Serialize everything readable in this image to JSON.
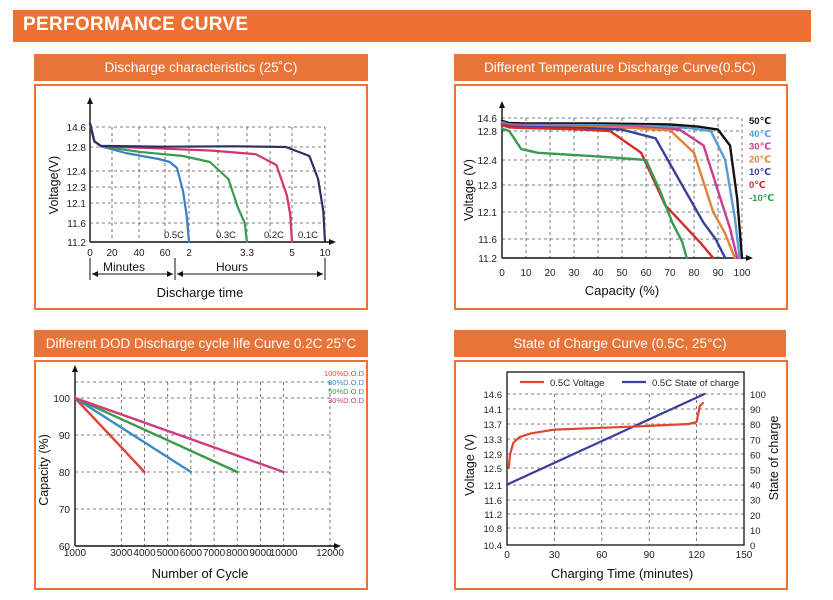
{
  "header": {
    "title": "PERFORMANCE CURVE"
  },
  "chart_data": [
    {
      "type": "line",
      "title": "Discharge characteristics (25˚C)",
      "ylabel": "Voltage(V)",
      "xlabel": "Discharge time",
      "x_section_labels": [
        "Minutes",
        "Hours"
      ],
      "x_tick_labels": [
        "0",
        "20",
        "40",
        "60",
        "2",
        "3.3",
        "5",
        "10"
      ],
      "y_ticks": [
        11.2,
        11.6,
        12.1,
        12.3,
        12.4,
        12.8,
        14.6
      ],
      "y_tick_labels": [
        "11.2",
        "11.6",
        "12.1",
        "12.3",
        "12.4",
        "12.8",
        "14.6"
      ],
      "series": [
        {
          "name": "0.5C",
          "color": "#3b7fc4",
          "points": [
            [
              0,
              14.5
            ],
            [
              4,
              13.2
            ],
            [
              10,
              12.85
            ],
            [
              30,
              12.7
            ],
            [
              55,
              12.6
            ],
            [
              68,
              12.55
            ],
            [
              80,
              12.45
            ],
            [
              90,
              12.25
            ],
            [
              96,
              11.8
            ],
            [
              100,
              11.2
            ]
          ]
        },
        {
          "name": "0.3C",
          "color": "#3a9a4d",
          "points": [
            [
              0,
              14.5
            ],
            [
              4,
              13.2
            ],
            [
              10,
              12.85
            ],
            [
              40,
              12.72
            ],
            [
              90,
              12.65
            ],
            [
              118,
              12.55
            ],
            [
              134,
              12.35
            ],
            [
              142,
              12.0
            ],
            [
              148,
              11.6
            ],
            [
              150,
              11.2
            ]
          ]
        },
        {
          "name": "0.2C",
          "color": "#d4336b",
          "points": [
            [
              0,
              14.5
            ],
            [
              4,
              13.2
            ],
            [
              10,
              12.85
            ],
            [
              50,
              12.78
            ],
            [
              120,
              12.74
            ],
            [
              160,
              12.68
            ],
            [
              184,
              12.5
            ],
            [
              196,
              12.2
            ],
            [
              200,
              11.8
            ],
            [
              202,
              11.2
            ]
          ]
        },
        {
          "name": "0.1C",
          "color": "#2d2f66",
          "points": [
            [
              0,
              14.5
            ],
            [
              4,
              13.2
            ],
            [
              10,
              12.88
            ],
            [
              60,
              12.82
            ],
            [
              140,
              12.85
            ],
            [
              195,
              12.8
            ],
            [
              222,
              12.65
            ],
            [
              232,
              12.35
            ],
            [
              238,
              11.9
            ],
            [
              240,
              11.2
            ]
          ]
        }
      ]
    },
    {
      "type": "line",
      "title": "Different Temperature Discharge Curve(0.5C)",
      "ylabel": "Voltage (V)",
      "xlabel": "Capacity (%)",
      "xlim": [
        0,
        100
      ],
      "x_ticks": [
        0,
        10,
        20,
        30,
        40,
        50,
        60,
        70,
        80,
        90,
        100
      ],
      "y_ticks": [
        11.2,
        11.6,
        12.1,
        12.3,
        12.4,
        12.8,
        14.6
      ],
      "y_tick_labels": [
        "11.2",
        "11.6",
        "12.1",
        "12.3",
        "12.4",
        "12.8",
        "14.6"
      ],
      "series": [
        {
          "name": "50℃",
          "color": "#111111",
          "points": [
            [
              0,
              14.2
            ],
            [
              3,
              13.9
            ],
            [
              10,
              13.85
            ],
            [
              40,
              13.85
            ],
            [
              70,
              13.7
            ],
            [
              82,
              13.4
            ],
            [
              90,
              13.0
            ],
            [
              95,
              12.6
            ],
            [
              98,
              12.2
            ],
            [
              100,
              11.2
            ]
          ]
        },
        {
          "name": "40℃",
          "color": "#5b9bd5",
          "points": [
            [
              0,
              14.0
            ],
            [
              3,
              13.7
            ],
            [
              10,
              13.65
            ],
            [
              40,
              13.6
            ],
            [
              65,
              13.45
            ],
            [
              78,
              13.2
            ],
            [
              87,
              12.8
            ],
            [
              93,
              12.4
            ],
            [
              97,
              12.0
            ],
            [
              99,
              11.2
            ]
          ]
        },
        {
          "name": "30℃",
          "color": "#c83e8c",
          "points": [
            [
              0,
              13.9
            ],
            [
              3,
              13.6
            ],
            [
              10,
              13.55
            ],
            [
              40,
              13.45
            ],
            [
              60,
              13.3
            ],
            [
              74,
              13.0
            ],
            [
              84,
              12.6
            ],
            [
              91,
              12.2
            ],
            [
              95,
              11.8
            ],
            [
              98,
              11.2
            ]
          ]
        },
        {
          "name": "20℃",
          "color": "#e0823a",
          "points": [
            [
              0,
              13.8
            ],
            [
              3,
              13.5
            ],
            [
              10,
              13.45
            ],
            [
              35,
              13.35
            ],
            [
              55,
              13.2
            ],
            [
              70,
              12.9
            ],
            [
              80,
              12.5
            ],
            [
              88,
              12.1
            ],
            [
              93,
              11.7
            ],
            [
              97,
              11.2
            ]
          ]
        },
        {
          "name": "10℃",
          "color": "#3b3f9a",
          "points": [
            [
              0,
              13.7
            ],
            [
              3,
              13.45
            ],
            [
              10,
              13.35
            ],
            [
              35,
              13.2
            ],
            [
              50,
              13.0
            ],
            [
              64,
              12.7
            ],
            [
              75,
              12.3
            ],
            [
              84,
              11.9
            ],
            [
              89,
              11.6
            ],
            [
              93,
              11.2
            ]
          ]
        },
        {
          "name": "0℃",
          "color": "#d62a2a",
          "points": [
            [
              0,
              13.6
            ],
            [
              3,
              13.3
            ],
            [
              10,
              13.2
            ],
            [
              30,
              13.05
            ],
            [
              45,
              12.8
            ],
            [
              58,
              12.5
            ],
            [
              68,
              12.15
            ],
            [
              77,
              11.8
            ],
            [
              83,
              11.5
            ],
            [
              88,
              11.2
            ]
          ]
        },
        {
          "name": "-10℃",
          "color": "#3a9a4d",
          "points": [
            [
              0,
              13.1
            ],
            [
              3,
              12.8
            ],
            [
              8,
              12.55
            ],
            [
              15,
              12.5
            ],
            [
              40,
              12.45
            ],
            [
              60,
              12.4
            ],
            [
              66,
              12.25
            ],
            [
              71,
              11.9
            ],
            [
              75,
              11.55
            ],
            [
              77,
              11.2
            ]
          ]
        }
      ]
    },
    {
      "type": "line",
      "title": "Different DOD Discharge cycle life Curve 0.2C 25°C",
      "ylabel": "Capacity (%)",
      "xlabel": "Number of Cycle",
      "xlim": [
        1000,
        12000
      ],
      "ylim": [
        60,
        100
      ],
      "x_ticks": [
        1000,
        3000,
        4000,
        5000,
        6000,
        7000,
        8000,
        9000,
        10000,
        12000
      ],
      "y_ticks": [
        60,
        70,
        80,
        90,
        100
      ],
      "series": [
        {
          "name": "100%D.O.D",
          "color": "#e2452f",
          "points": [
            [
              1000,
              100
            ],
            [
              4000,
              80
            ]
          ]
        },
        {
          "name": "80%D.O.D",
          "color": "#3c8ac6",
          "points": [
            [
              1000,
              100
            ],
            [
              6000,
              80
            ]
          ]
        },
        {
          "name": "50%D.O.D",
          "color": "#3a9a4d",
          "points": [
            [
              1000,
              100
            ],
            [
              8000,
              80
            ]
          ]
        },
        {
          "name": "30%D.O.D",
          "color": "#cf3b7e",
          "points": [
            [
              1000,
              100
            ],
            [
              10000,
              80
            ]
          ]
        }
      ]
    },
    {
      "type": "line",
      "title": "State of Charge Curve (0.5C, 25°C)",
      "ylabel": "Voltage (V)",
      "ylabel_right": "State of charge",
      "xlabel": "Charging Time (minutes)",
      "xlim": [
        0,
        150
      ],
      "ylim": [
        10.4,
        14.6
      ],
      "ylim_right": [
        0,
        100
      ],
      "x_ticks": [
        0,
        30,
        60,
        90,
        120,
        150
      ],
      "y_ticks": [
        10.4,
        10.8,
        11.2,
        11.6,
        12.1,
        12.5,
        12.9,
        13.3,
        13.7,
        14.1,
        14.6
      ],
      "y_ticks_right": [
        0,
        10,
        20,
        30,
        40,
        50,
        60,
        70,
        80,
        90,
        100
      ],
      "series": [
        {
          "name": "0.5C Voltage",
          "axis": "left",
          "color": "#e2452f",
          "points": [
            [
              1,
              12.5
            ],
            [
              2,
              12.9
            ],
            [
              4,
              13.2
            ],
            [
              8,
              13.35
            ],
            [
              15,
              13.45
            ],
            [
              30,
              13.55
            ],
            [
              60,
              13.6
            ],
            [
              90,
              13.65
            ],
            [
              115,
              13.7
            ],
            [
              120,
              13.75
            ],
            [
              122,
              14.2
            ],
            [
              124,
              14.3
            ]
          ]
        },
        {
          "name": "0.5C State of charge",
          "axis": "right",
          "color": "#3b3f9a",
          "points": [
            [
              0,
              40
            ],
            [
              125,
              100
            ]
          ]
        }
      ]
    }
  ]
}
